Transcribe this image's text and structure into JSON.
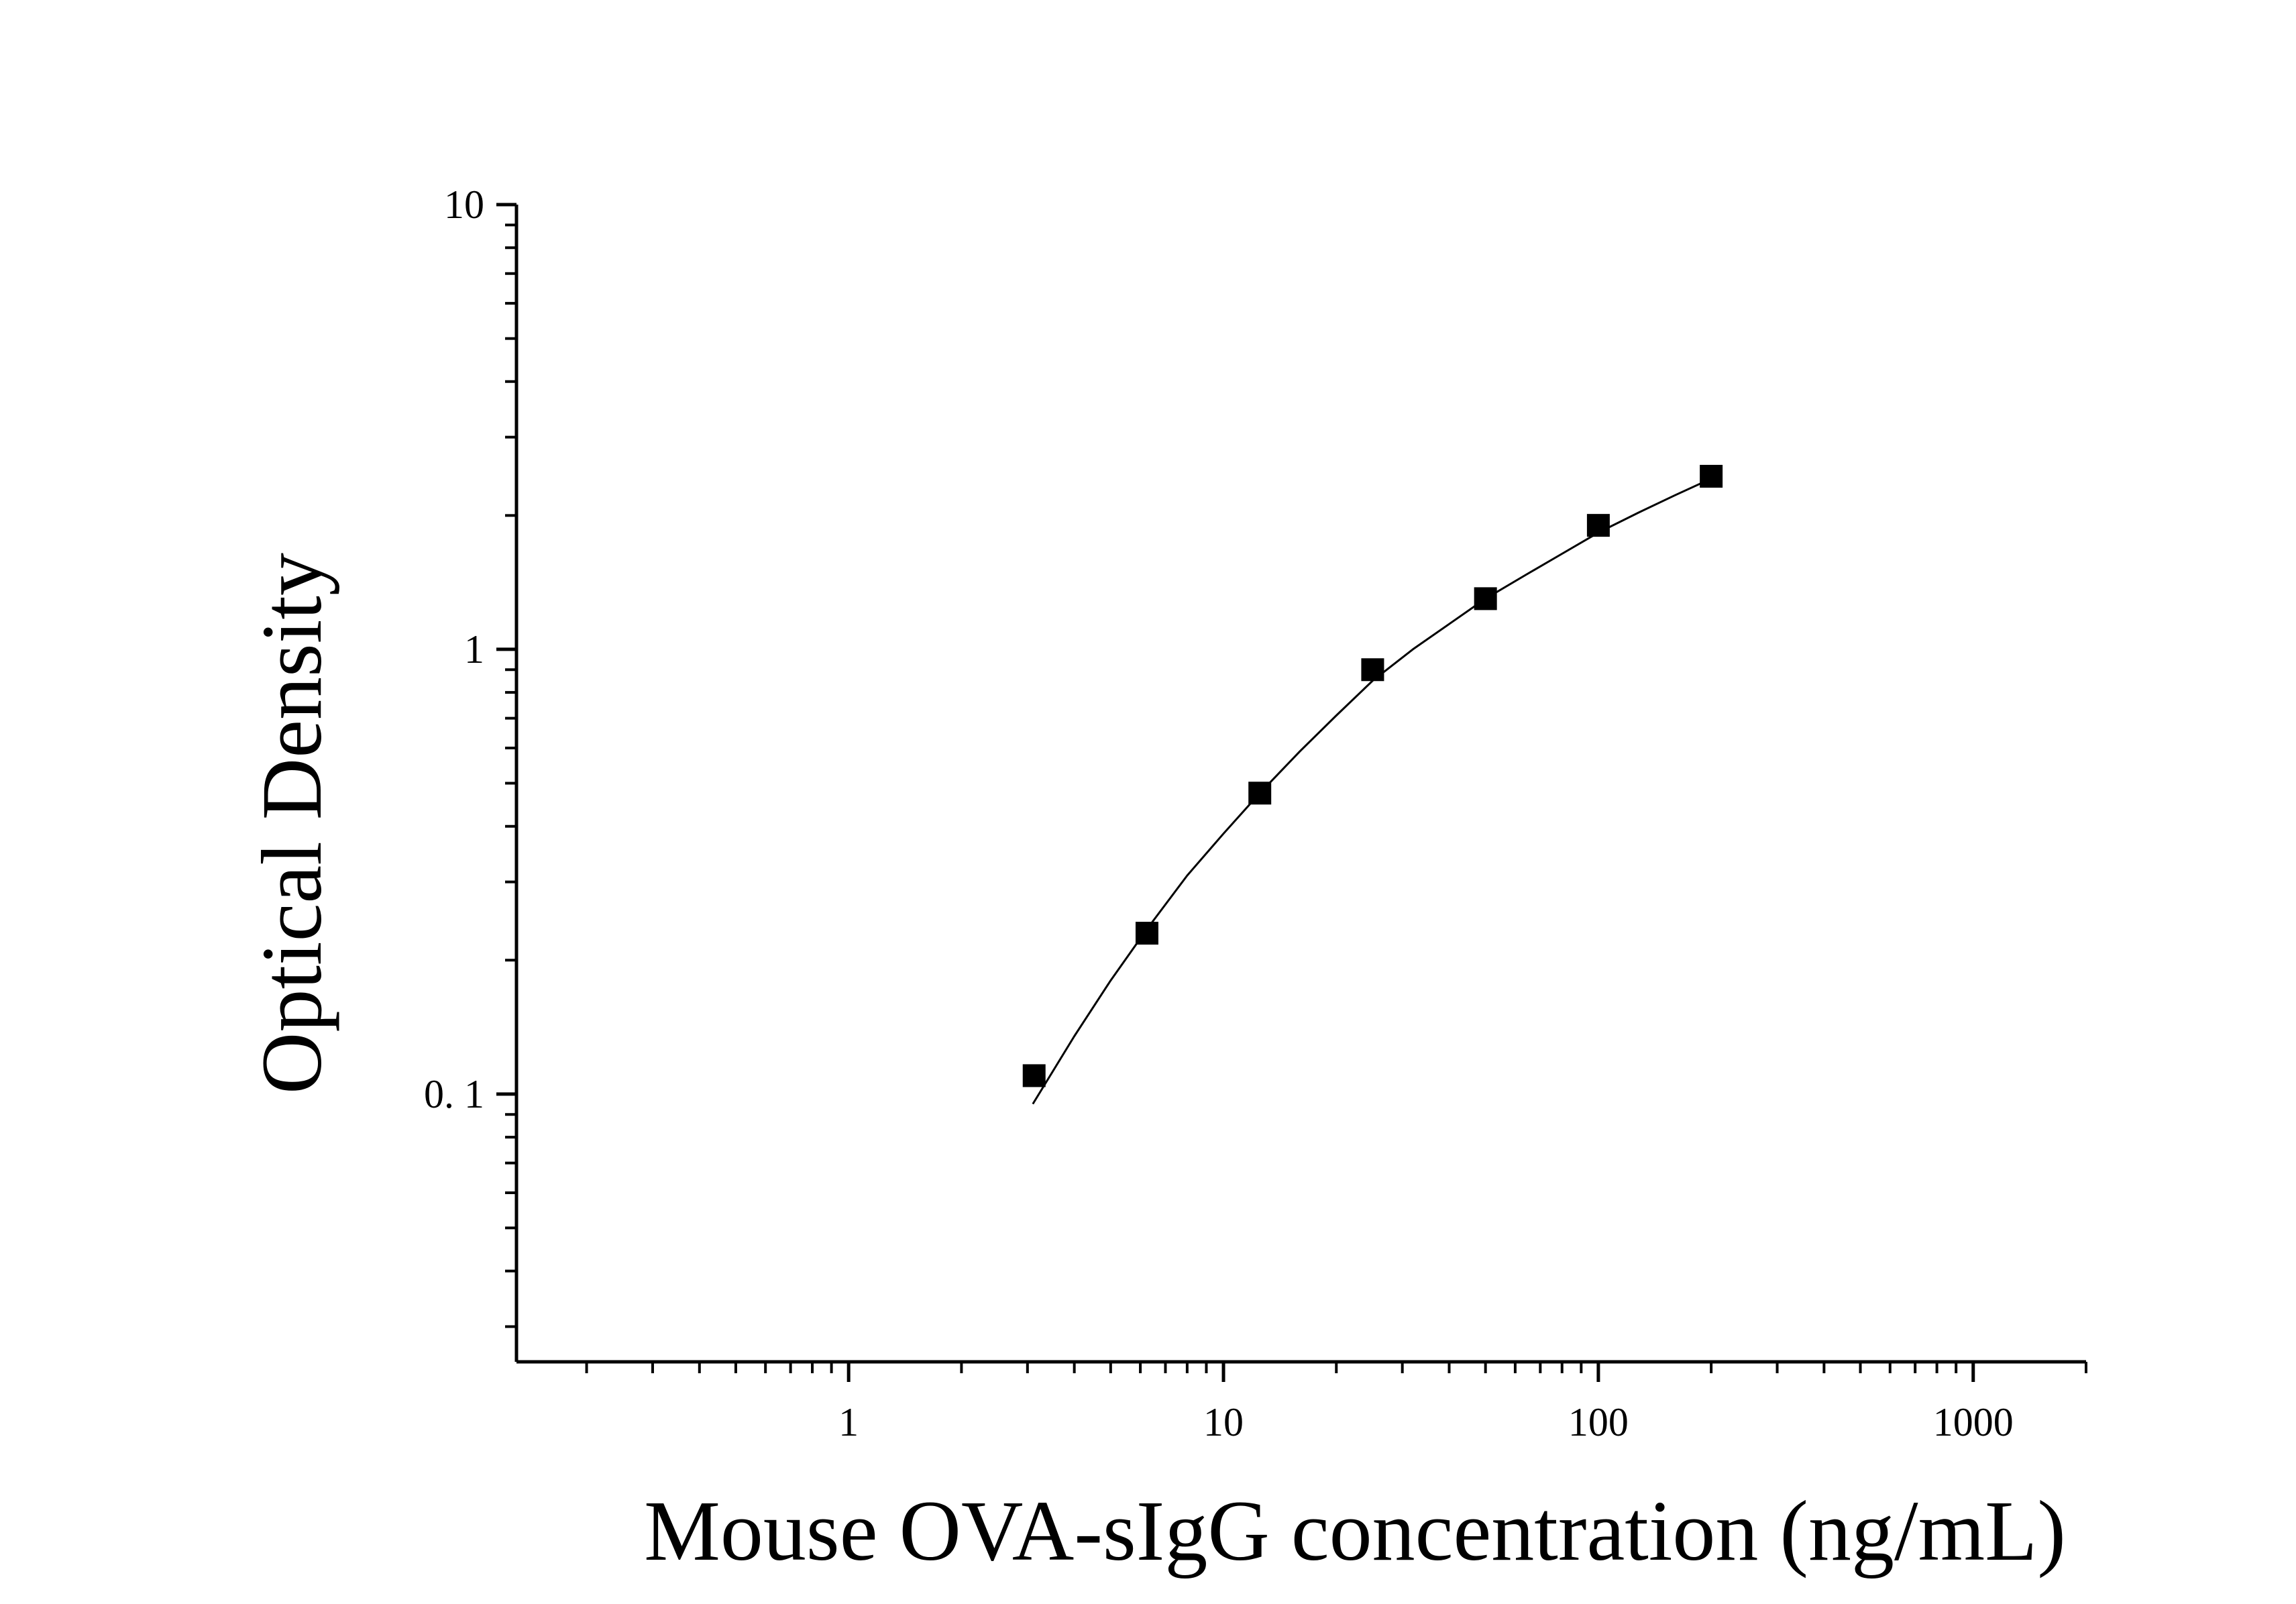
{
  "chart_data": {
    "type": "scatter",
    "title": "",
    "xlabel": "Mouse OVA-sIgG concentration (ng/mL)",
    "ylabel": "Optical Density",
    "x_scale": "log",
    "y_scale": "log",
    "xlim": [
      0.13,
      2000
    ],
    "ylim": [
      0.025,
      10
    ],
    "x_ticks": [
      {
        "value": 1,
        "label": "1"
      },
      {
        "value": 10,
        "label": "10"
      },
      {
        "value": 100,
        "label": "100"
      },
      {
        "value": 1000,
        "label": "1000"
      }
    ],
    "y_ticks": [
      {
        "value": 0.1,
        "label": "0. 1"
      },
      {
        "value": 1,
        "label": "1"
      },
      {
        "value": 10,
        "label": "10"
      }
    ],
    "grid": false,
    "legend": "none",
    "series": [
      {
        "marker": "square",
        "color": "#000000",
        "x": [
          3.125,
          6.25,
          12.5,
          25,
          50,
          100,
          200
        ],
        "y": [
          0.11,
          0.23,
          0.475,
          0.9,
          1.3,
          1.9,
          2.45
        ]
      }
    ],
    "fit_curve": {
      "color": "#000000",
      "x": [
        3.1,
        4,
        5,
        6.25,
        8,
        10,
        12.5,
        16,
        20,
        25,
        32,
        40,
        50,
        64,
        80,
        100,
        128,
        160,
        200
      ],
      "y": [
        0.095,
        0.135,
        0.18,
        0.235,
        0.31,
        0.385,
        0.475,
        0.59,
        0.71,
        0.85,
        1.0,
        1.14,
        1.3,
        1.47,
        1.64,
        1.83,
        2.03,
        2.22,
        2.42
      ]
    }
  }
}
